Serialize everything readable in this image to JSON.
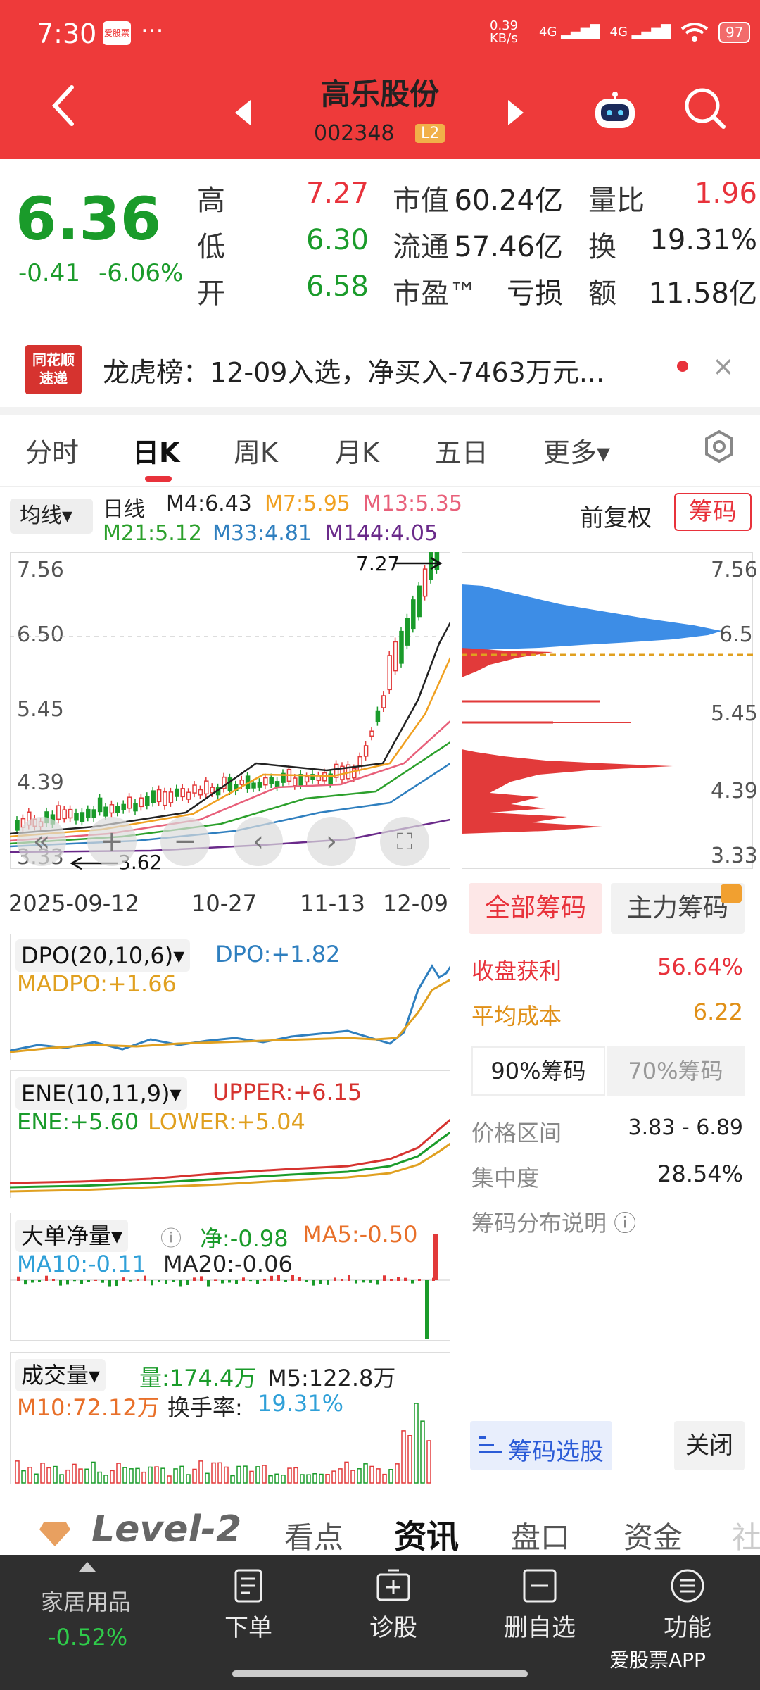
{
  "status": {
    "time": "7:30",
    "app_badge": "爱股票",
    "dots": "···",
    "net_speed": "0.39 KB/s",
    "sig1": "4G",
    "sig2": "4G",
    "battery": "97"
  },
  "header": {
    "stock_name": "高乐股份",
    "stock_code": "002348",
    "level_badge": "L2"
  },
  "quote": {
    "price": "6.36",
    "change": "-0.41",
    "change_pct": "-6.06%",
    "rows": [
      {
        "l1": "高",
        "v1": "7.27",
        "l2": "市值",
        "v2": "60.24亿",
        "l3": "量比",
        "v3": "1.96"
      },
      {
        "l1": "低",
        "v1": "6.30",
        "l2": "流通",
        "v2": "57.46亿",
        "l3": "换",
        "v3": "19.31%"
      },
      {
        "l1": "开",
        "v1": "6.58",
        "l2": "市盈™",
        "v2": "亏损",
        "l3": "额",
        "v3": "11.58亿"
      }
    ]
  },
  "banner": {
    "logo": "同花顺 速递",
    "text": "龙虎榜：12-09入选，净买入-7463万元...",
    "close": "×"
  },
  "tabs": [
    "分时",
    "日K",
    "周K",
    "月K",
    "五日",
    "更多▾"
  ],
  "ma_legend": {
    "selector": "均线▾",
    "period": "日线",
    "m4": "M4:6.43",
    "m7": "M7:5.95",
    "m13": "M13:5.35",
    "m21": "M21:5.12",
    "m33": "M33:4.81",
    "m144": "M144:4.05",
    "fq": "前复权",
    "chip_button": "筹码",
    "colors": {
      "m4": "#222222",
      "m7": "#f0a020",
      "m13": "#e8607a",
      "m21": "#2ca02c",
      "m33": "#2f7fbf",
      "m144": "#6a2a8a"
    }
  },
  "kline": {
    "y_ticks": [
      "7.56",
      "6.50",
      "5.45",
      "4.39",
      "3.33"
    ],
    "dates": [
      "2025-09-12",
      "10-27",
      "11-13",
      "12-09"
    ],
    "high_mark": "7.27",
    "low_mark": "3.62"
  },
  "dpo": {
    "selector": "DPO(20,10,6)▾",
    "dpo": "DPO:+1.82",
    "madpo": "MADPO:+1.66"
  },
  "ene": {
    "selector": "ENE(10,11,9)▾",
    "upper": "UPPER:+6.15",
    "ene": "ENE:+5.60",
    "lower": "LOWER:+5.04"
  },
  "bigorder": {
    "selector": "大单净量▾",
    "net": "净:-0.98",
    "ma5": "MA5:-0.50",
    "ma10": "MA10:-0.11",
    "ma20": "MA20:-0.06"
  },
  "volume": {
    "selector": "成交量▾",
    "vol": "量:174.4万",
    "m5": "M5:122.8万",
    "m10": "M10:72.12万",
    "turnover_label": "换手率:",
    "turnover": "19.31%"
  },
  "chips": {
    "tab_all": "全部筹码",
    "tab_main": "主力筹码",
    "y_ticks": [
      "7.56",
      "6.5",
      "5.45",
      "4.39",
      "3.33"
    ],
    "profit_label": "收盘获利",
    "profit": "56.64%",
    "avg_cost_label": "平均成本",
    "avg_cost": "6.22",
    "seg_90": "90%筹码",
    "seg_70": "70%筹码",
    "range_label": "价格区间",
    "range": "3.83 - 6.89",
    "concentration_label": "集中度",
    "concentration": "28.54%",
    "explain": "筹码分布说明 ⓘ",
    "select_button": "筹码选股",
    "close_button": "关闭"
  },
  "level2_tabs": [
    "Level-2",
    "看点",
    "资讯",
    "盘口",
    "资金",
    "社"
  ],
  "bottom": {
    "sector": "家居用品",
    "sector_chg": "-0.52%",
    "items": [
      "下单",
      "诊股",
      "删自选",
      "功能"
    ],
    "watermark": "爱股票APP"
  }
}
